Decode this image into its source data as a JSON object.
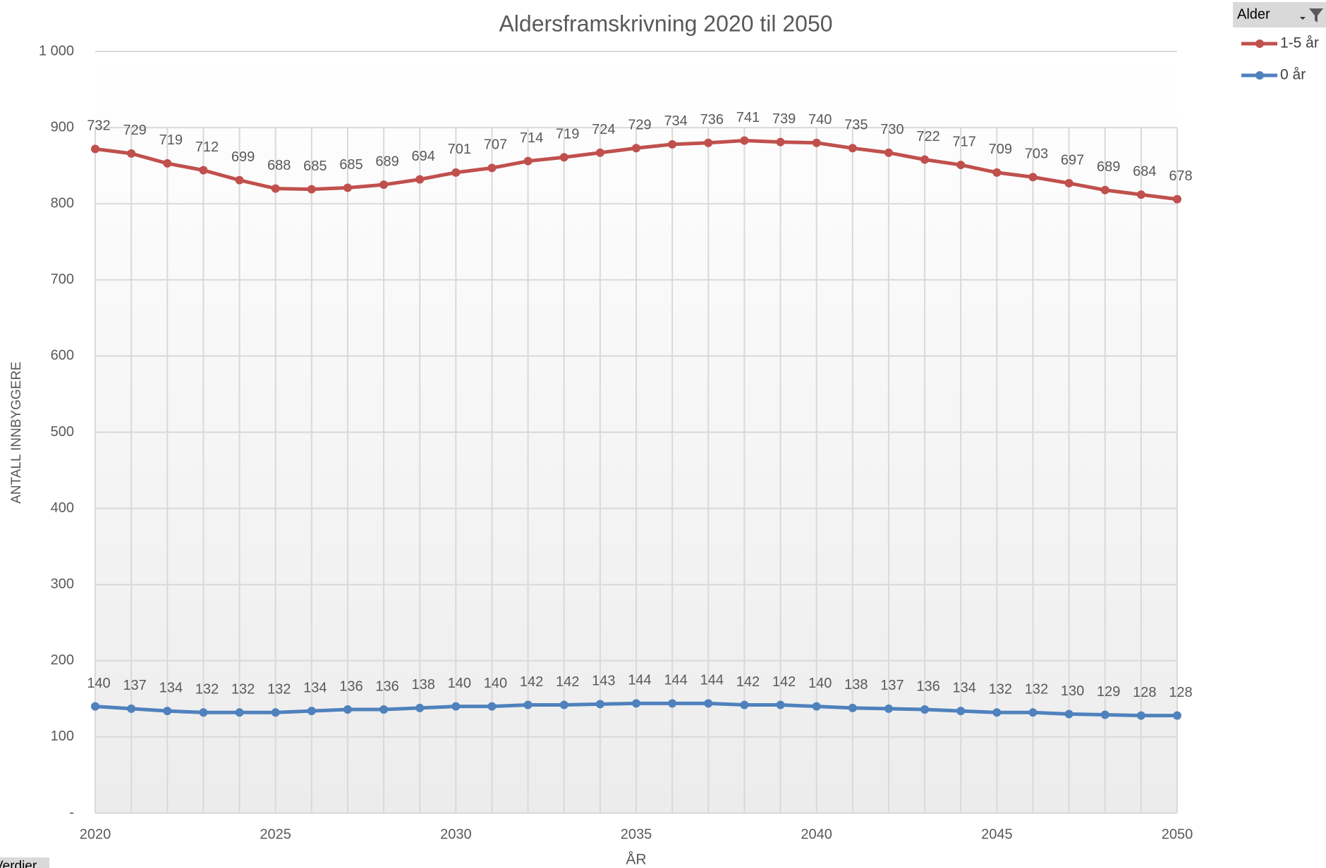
{
  "chart_data": {
    "type": "line",
    "stacked": true,
    "title": "Aldersframskrivning  2020 til 2050",
    "y_label": "ANTALL INNBYGGERE",
    "x_label": "ÅR",
    "legend_title": "Alder",
    "legend": "top-right",
    "grid": true,
    "x": [
      2020,
      2021,
      2022,
      2023,
      2024,
      2025,
      2026,
      2027,
      2028,
      2029,
      2030,
      2031,
      2032,
      2033,
      2034,
      2035,
      2036,
      2037,
      2038,
      2039,
      2040,
      2041,
      2042,
      2043,
      2044,
      2045,
      2046,
      2047,
      2048,
      2049,
      2050
    ],
    "xlim": [
      2020,
      2050
    ],
    "xticks": [
      2020,
      2025,
      2030,
      2035,
      2040,
      2045,
      2050
    ],
    "ylim": [
      0,
      1000
    ],
    "yticks": [
      {
        "value": 0,
        "label": "-"
      },
      100,
      200,
      300,
      400,
      500,
      600,
      700,
      800,
      900,
      {
        "value": 1000,
        "label": "1 000"
      }
    ],
    "series": [
      {
        "name": "1-5 år",
        "color": "#c0504d",
        "values": [
          732,
          729,
          719,
          712,
          699,
          688,
          685,
          685,
          689,
          694,
          701,
          707,
          714,
          719,
          724,
          729,
          734,
          736,
          741,
          739,
          740,
          735,
          730,
          722,
          717,
          709,
          703,
          697,
          689,
          684,
          678
        ]
      },
      {
        "name": "0 år",
        "color": "#4f81bd",
        "values": [
          140,
          137,
          134,
          132,
          132,
          132,
          134,
          136,
          136,
          138,
          140,
          140,
          142,
          142,
          143,
          144,
          144,
          144,
          142,
          142,
          140,
          138,
          137,
          136,
          134,
          132,
          132,
          130,
          129,
          128,
          128
        ]
      }
    ]
  },
  "values_button": "Verdier"
}
